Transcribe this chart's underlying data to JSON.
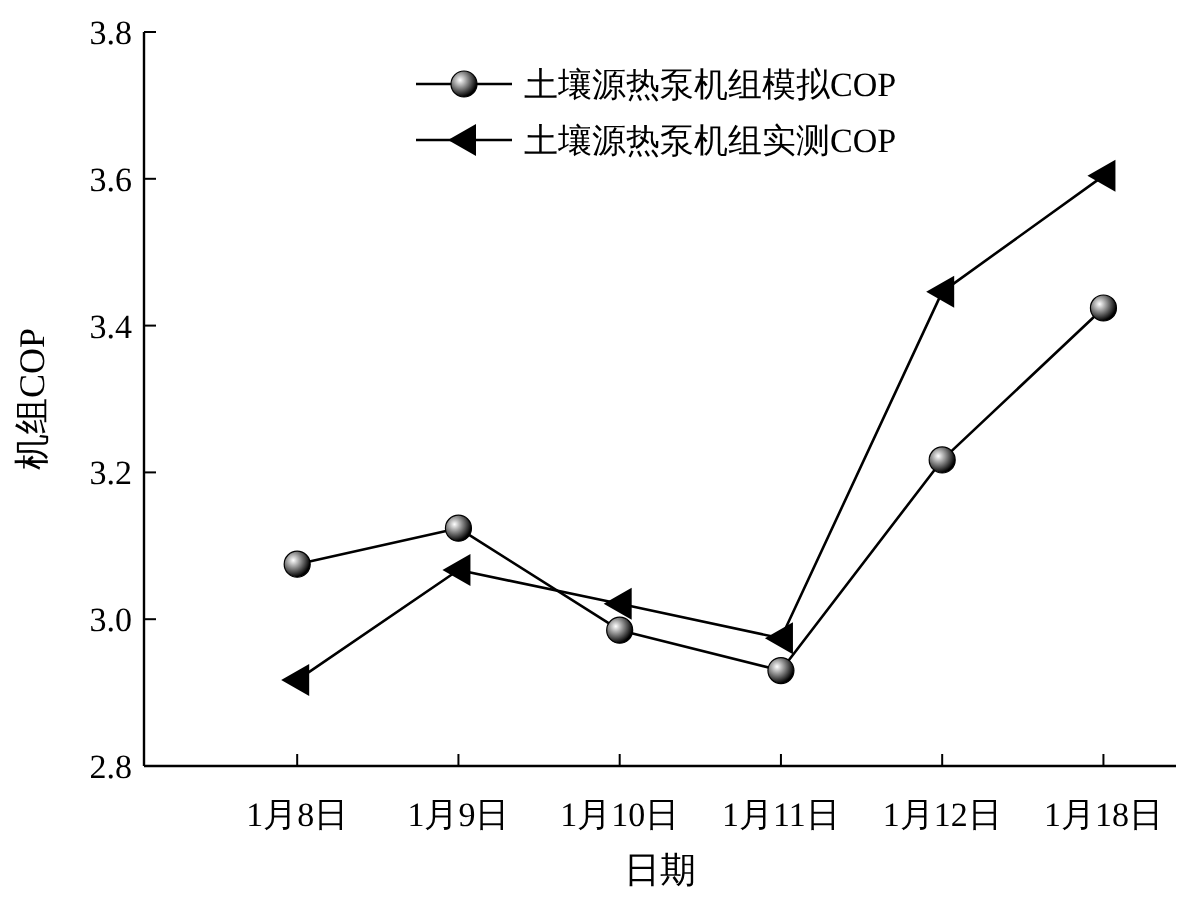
{
  "chart_data": {
    "type": "line",
    "xlabel": "日期",
    "ylabel": "机组COP",
    "categories": [
      "1月8日",
      "1月9日",
      "1月10日",
      "1月11日",
      "1月12日",
      "1月18日"
    ],
    "series": [
      {
        "name": "土壤源热泵机组模拟COP",
        "color": "#000000",
        "marker": "circle",
        "values": [
          3.075,
          3.124,
          2.985,
          2.93,
          3.217,
          3.424
        ]
      },
      {
        "name": "土壤源热泵机组实测COP",
        "color": "#000000",
        "marker": "triangle",
        "values": [
          2.917,
          3.067,
          3.021,
          2.974,
          3.446,
          3.604
        ]
      }
    ],
    "ylim": [
      2.8,
      3.8
    ],
    "yticks": [
      {
        "value": 2.8,
        "label": "2.8"
      },
      {
        "value": 3.0,
        "label": "3.0"
      },
      {
        "value": 3.2,
        "label": "3.2"
      },
      {
        "value": 3.4,
        "label": "3.4"
      },
      {
        "value": 3.6,
        "label": "3.6"
      },
      {
        "value": 3.8,
        "label": "3.8"
      }
    ],
    "grid": false,
    "legend": "top",
    "line_style": "solid"
  }
}
